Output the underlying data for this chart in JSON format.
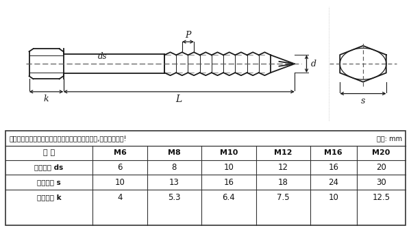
{
  "bg_color": "#ffffff",
  "table_bg": "#ffffff",
  "border_color": "#333333",
  "note_text": "以下为单批测量数据，可能稍有误差，以实际为准,介意者请慎拍!",
  "unit_text": "单位: mm",
  "table_headers": [
    "规 格",
    "M6",
    "M8",
    "M10",
    "M12",
    "M16",
    "M20"
  ],
  "table_rows": [
    [
      "螺杆直径 ds",
      "6",
      "8",
      "10",
      "12",
      "16",
      "20"
    ],
    [
      "头部对边 s",
      "10",
      "13",
      "16",
      "18",
      "24",
      "30"
    ],
    [
      "头部厚度 k",
      "4",
      "5.3",
      "6.4",
      "7.5",
      "10",
      "12.5"
    ]
  ],
  "drawing_bg": "#ffffff",
  "line_color": "#1a1a1a",
  "dashed_color": "#555555"
}
